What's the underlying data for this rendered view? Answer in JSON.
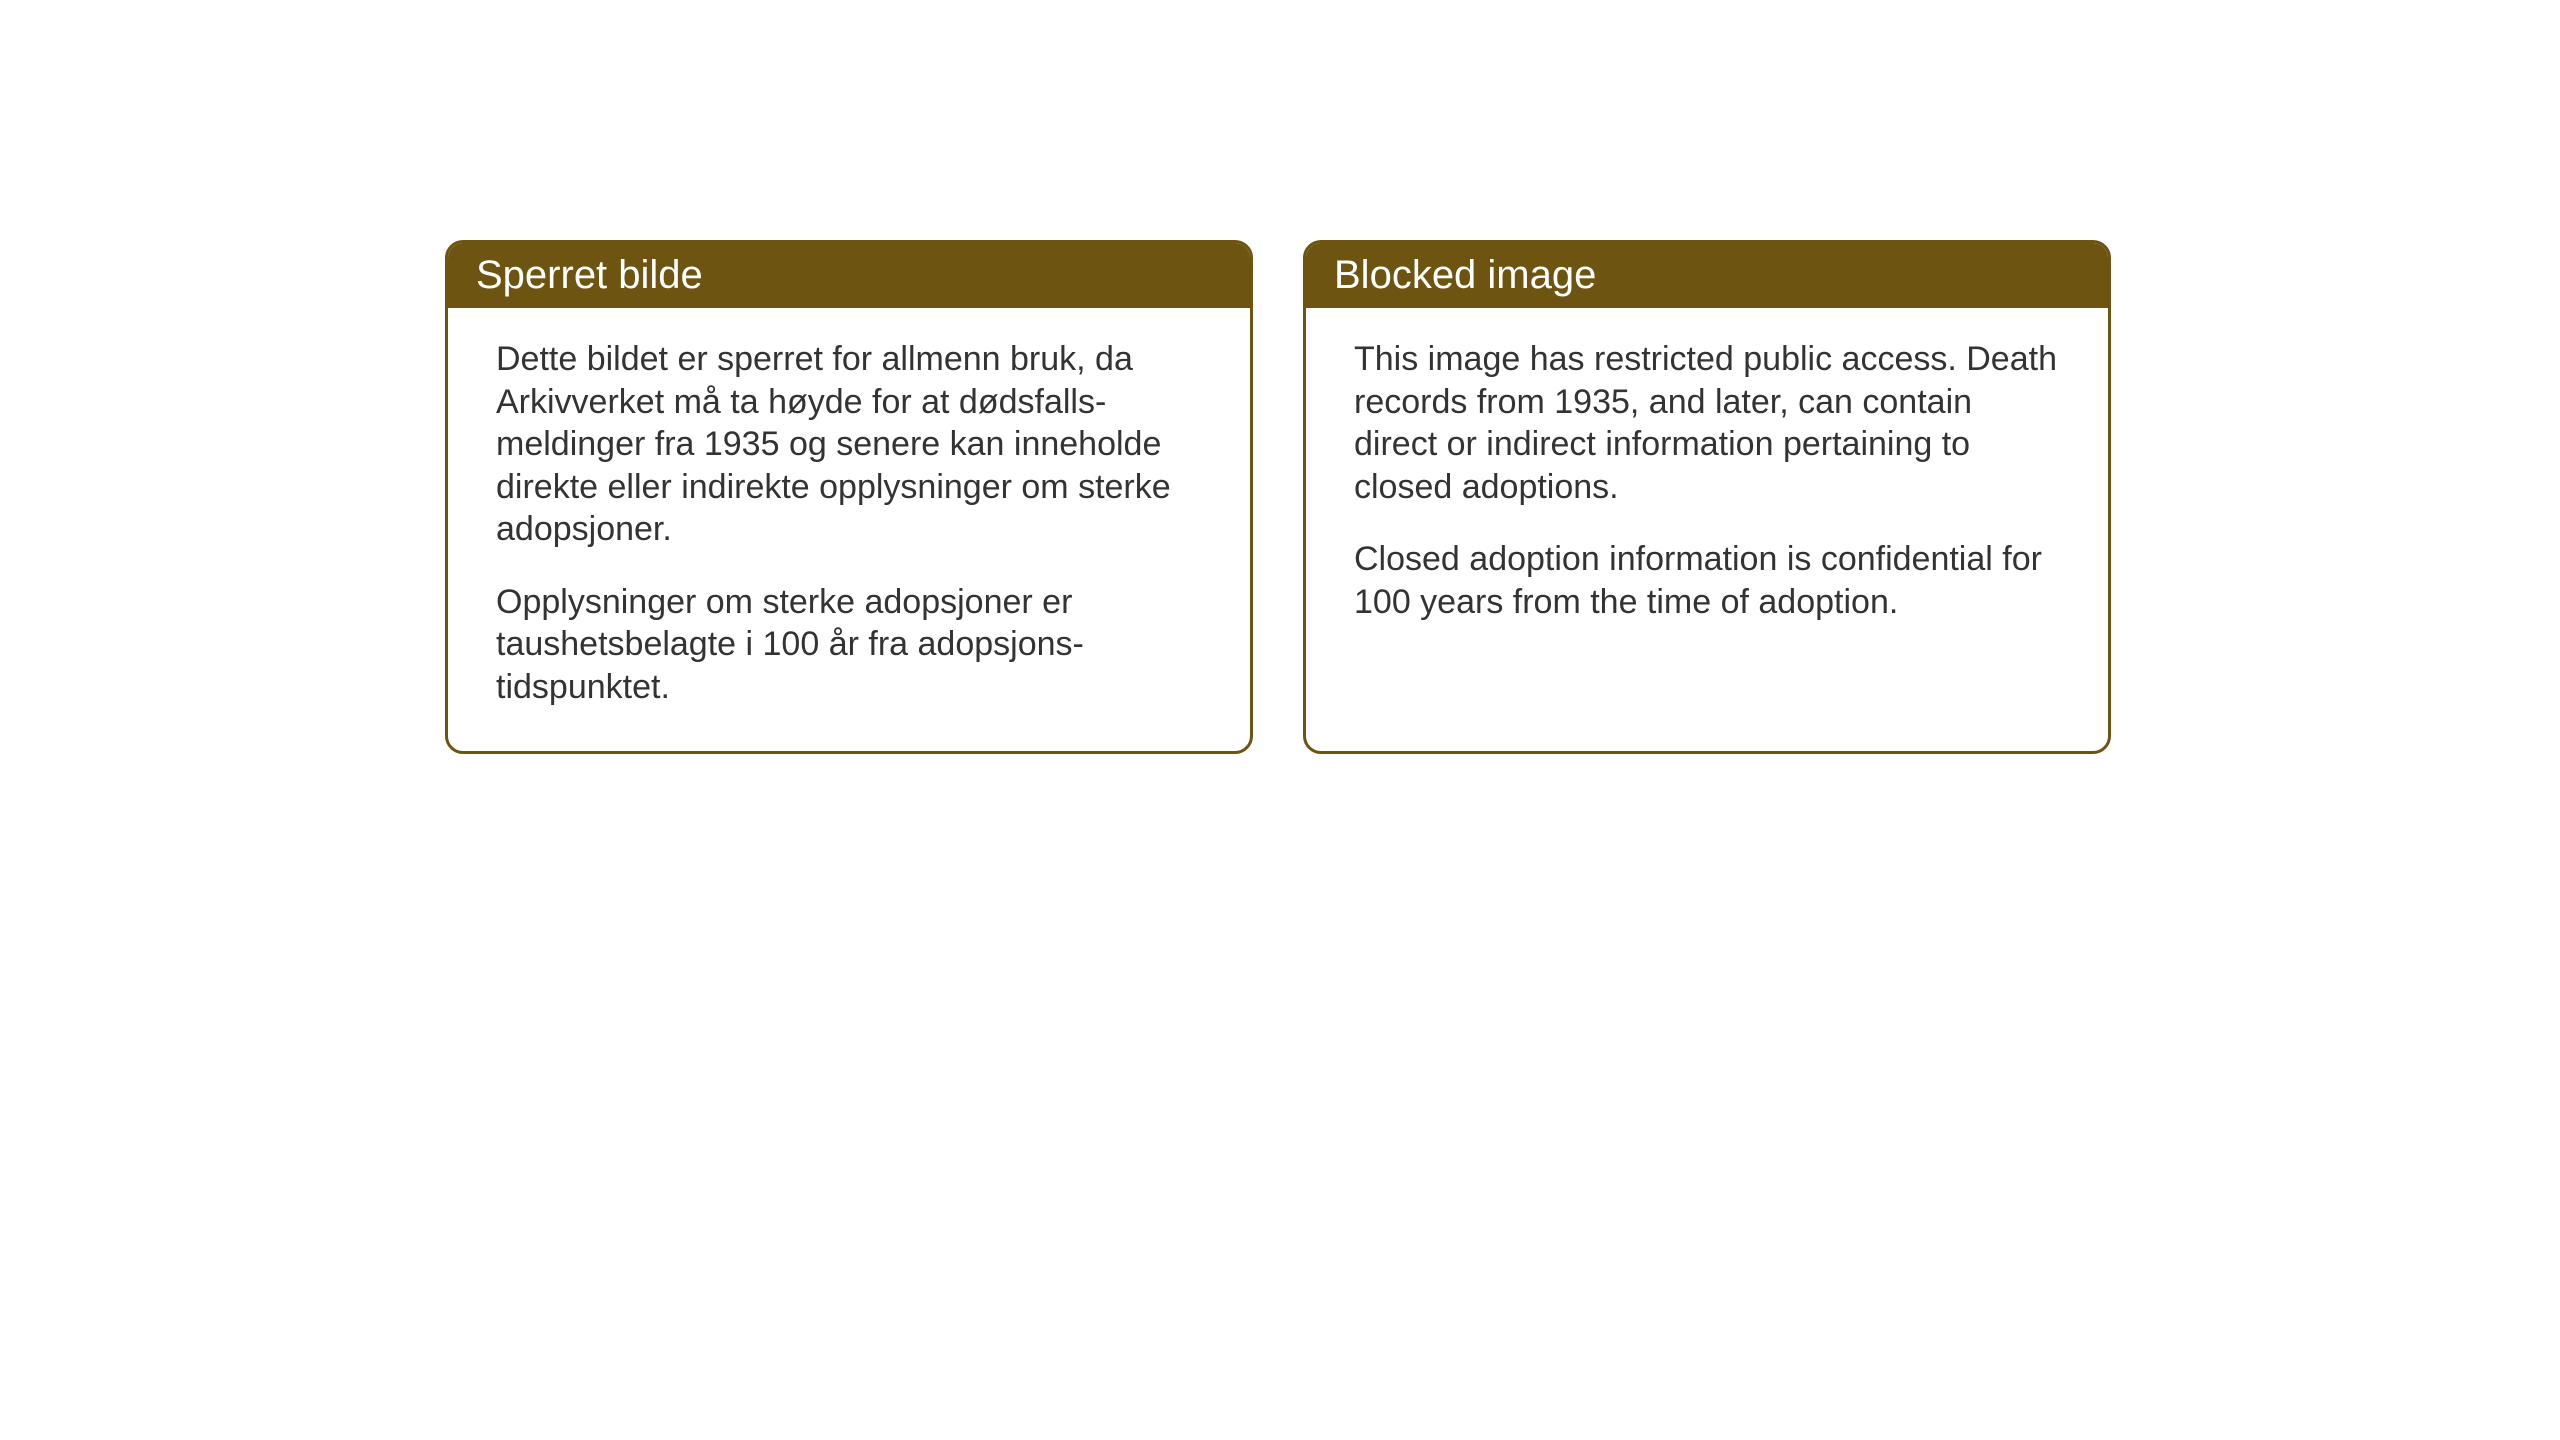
{
  "layout": {
    "background_color": "#ffffff",
    "card_border_color": "#6e5411",
    "card_header_bg": "#6e5411",
    "card_header_text_color": "#ffffff",
    "card_body_text_color": "#333333",
    "header_fontsize": 40,
    "body_fontsize": 34,
    "border_radius": 18,
    "border_width": 3
  },
  "cards": {
    "left": {
      "title": "Sperret bilde",
      "paragraph1": "Dette bildet er sperret for allmenn bruk, da Arkivverket må ta høyde for at dødsfalls-meldinger fra 1935 og senere kan inneholde direkte eller indirekte opplysninger om sterke adopsjoner.",
      "paragraph2": "Opplysninger om sterke adopsjoner er taushetsbelagte i 100 år fra adopsjons-tidspunktet."
    },
    "right": {
      "title": "Blocked image",
      "paragraph1": "This image has restricted public access. Death records from 1935, and later, can contain direct or indirect information pertaining to closed adoptions.",
      "paragraph2": "Closed adoption information is confidential for 100 years from the time of adoption."
    }
  }
}
